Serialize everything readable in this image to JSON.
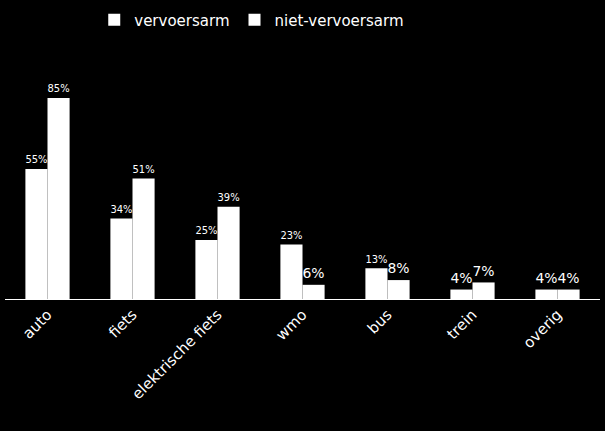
{
  "chart_data": {
    "type": "bar",
    "categories": [
      "auto",
      "fiets",
      "elektrische fiets",
      "wmo",
      "bus",
      "trein",
      "overig"
    ],
    "series": [
      {
        "name": "vervoersarm",
        "color": "#ffffff",
        "values": [
          55,
          34,
          25,
          23,
          13,
          4,
          4
        ],
        "value_labels": [
          "55%",
          "34%",
          "25%",
          "23%",
          "13%",
          "4%",
          "4%"
        ]
      },
      {
        "name": "niet-vervoersarm",
        "color": "#ffffff",
        "values": [
          85,
          51,
          39,
          6,
          8,
          7,
          4
        ],
        "value_labels": [
          "85%",
          "51%",
          "39%",
          "6%",
          "8%",
          "7%",
          "4%"
        ]
      }
    ],
    "ylim": [
      0,
      85
    ],
    "yticks": [],
    "grid": false,
    "legend": "top",
    "data_labels": true,
    "tick_labels": "x"
  }
}
